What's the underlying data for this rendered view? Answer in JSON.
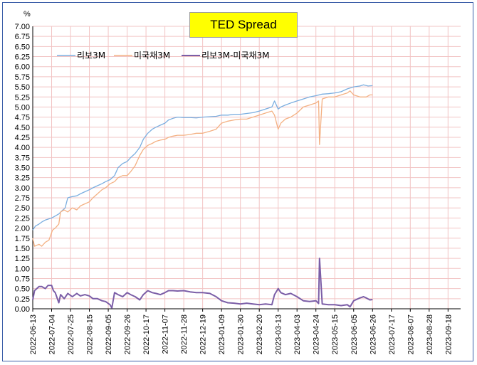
{
  "chart_data": {
    "type": "line",
    "title": "TED Spread",
    "ylabel": "%",
    "xlabel": "",
    "ylim": [
      0,
      7
    ],
    "y_ticks": [
      "0.00",
      "0.25",
      "0.50",
      "0.75",
      "1.00",
      "1.25",
      "1.50",
      "1.75",
      "2.00",
      "2.25",
      "2.50",
      "2.75",
      "3.00",
      "3.25",
      "3.50",
      "3.75",
      "4.00",
      "4.25",
      "4.50",
      "4.75",
      "5.00",
      "5.25",
      "5.50",
      "5.75",
      "6.00",
      "6.25",
      "6.50",
      "6.75",
      "7.00"
    ],
    "x_ticks": [
      "2022-06-13",
      "2022-07-04",
      "2022-07-25",
      "2022-08-15",
      "2022-09-05",
      "2022-09-26",
      "2022-10-17",
      "2022-11-07",
      "2022-11-28",
      "2022-12-19",
      "2023-01-09",
      "2023-01-30",
      "2023-02-20",
      "2023-03-13",
      "2023-04-03",
      "2023-04-24",
      "2023-05-15",
      "2023-06-05",
      "2023-06-26",
      "2023-07-17",
      "2023-08-07",
      "2023-08-28",
      "2023-09-18"
    ],
    "xlim": [
      "2022-06-13",
      "2023-10-02"
    ],
    "grid": true,
    "legend_position": "top-left",
    "series": [
      {
        "name": "리보3M",
        "color": "#7aaee0",
        "points": [
          [
            "2022-06-13",
            1.95
          ],
          [
            "2022-06-16",
            2.05
          ],
          [
            "2022-06-20",
            2.1
          ],
          [
            "2022-06-23",
            2.15
          ],
          [
            "2022-06-27",
            2.2
          ],
          [
            "2022-07-04",
            2.25
          ],
          [
            "2022-07-08",
            2.3
          ],
          [
            "2022-07-12",
            2.35
          ],
          [
            "2022-07-15",
            2.42
          ],
          [
            "2022-07-19",
            2.5
          ],
          [
            "2022-07-22",
            2.75
          ],
          [
            "2022-07-27",
            2.78
          ],
          [
            "2022-08-01",
            2.8
          ],
          [
            "2022-08-05",
            2.85
          ],
          [
            "2022-08-10",
            2.9
          ],
          [
            "2022-08-15",
            2.95
          ],
          [
            "2022-08-19",
            3.0
          ],
          [
            "2022-08-24",
            3.05
          ],
          [
            "2022-08-29",
            3.1
          ],
          [
            "2022-09-02",
            3.15
          ],
          [
            "2022-09-07",
            3.2
          ],
          [
            "2022-09-12",
            3.3
          ],
          [
            "2022-09-16",
            3.5
          ],
          [
            "2022-09-21",
            3.6
          ],
          [
            "2022-09-26",
            3.65
          ],
          [
            "2022-09-30",
            3.75
          ],
          [
            "2022-10-05",
            3.85
          ],
          [
            "2022-10-10",
            4.0
          ],
          [
            "2022-10-14",
            4.2
          ],
          [
            "2022-10-19",
            4.35
          ],
          [
            "2022-10-24",
            4.45
          ],
          [
            "2022-10-28",
            4.5
          ],
          [
            "2022-11-02",
            4.55
          ],
          [
            "2022-11-07",
            4.6
          ],
          [
            "2022-11-11",
            4.68
          ],
          [
            "2022-11-16",
            4.72
          ],
          [
            "2022-11-21",
            4.75
          ],
          [
            "2022-11-28",
            4.74
          ],
          [
            "2022-12-05",
            4.74
          ],
          [
            "2022-12-12",
            4.73
          ],
          [
            "2022-12-19",
            4.75
          ],
          [
            "2022-12-27",
            4.76
          ],
          [
            "2023-01-03",
            4.77
          ],
          [
            "2023-01-09",
            4.8
          ],
          [
            "2023-01-16",
            4.8
          ],
          [
            "2023-01-23",
            4.82
          ],
          [
            "2023-01-30",
            4.82
          ],
          [
            "2023-02-06",
            4.84
          ],
          [
            "2023-02-13",
            4.86
          ],
          [
            "2023-02-20",
            4.9
          ],
          [
            "2023-02-27",
            4.95
          ],
          [
            "2023-03-06",
            5.0
          ],
          [
            "2023-03-09",
            5.15
          ],
          [
            "2023-03-13",
            4.95
          ],
          [
            "2023-03-16",
            5.0
          ],
          [
            "2023-03-21",
            5.05
          ],
          [
            "2023-03-27",
            5.1
          ],
          [
            "2023-04-03",
            5.15
          ],
          [
            "2023-04-10",
            5.2
          ],
          [
            "2023-04-17",
            5.25
          ],
          [
            "2023-04-24",
            5.28
          ],
          [
            "2023-05-01",
            5.32
          ],
          [
            "2023-05-08",
            5.33
          ],
          [
            "2023-05-15",
            5.35
          ],
          [
            "2023-05-22",
            5.38
          ],
          [
            "2023-05-29",
            5.45
          ],
          [
            "2023-06-05",
            5.5
          ],
          [
            "2023-06-12",
            5.52
          ],
          [
            "2023-06-16",
            5.55
          ],
          [
            "2023-06-21",
            5.52
          ],
          [
            "2023-06-26",
            5.53
          ]
        ]
      },
      {
        "name": "미국채3M",
        "color": "#f4b183",
        "points": [
          [
            "2022-06-13",
            1.75
          ],
          [
            "2022-06-15",
            1.55
          ],
          [
            "2022-06-20",
            1.6
          ],
          [
            "2022-06-23",
            1.55
          ],
          [
            "2022-06-27",
            1.65
          ],
          [
            "2022-07-01",
            1.7
          ],
          [
            "2022-07-05",
            1.95
          ],
          [
            "2022-07-08",
            2.0
          ],
          [
            "2022-07-12",
            2.1
          ],
          [
            "2022-07-14",
            2.4
          ],
          [
            "2022-07-18",
            2.45
          ],
          [
            "2022-07-22",
            2.4
          ],
          [
            "2022-07-27",
            2.5
          ],
          [
            "2022-08-01",
            2.45
          ],
          [
            "2022-08-05",
            2.55
          ],
          [
            "2022-08-10",
            2.6
          ],
          [
            "2022-08-15",
            2.65
          ],
          [
            "2022-08-19",
            2.75
          ],
          [
            "2022-08-24",
            2.85
          ],
          [
            "2022-08-29",
            2.95
          ],
          [
            "2022-09-02",
            3.0
          ],
          [
            "2022-09-07",
            3.1
          ],
          [
            "2022-09-12",
            3.15
          ],
          [
            "2022-09-16",
            3.25
          ],
          [
            "2022-09-21",
            3.3
          ],
          [
            "2022-09-26",
            3.3
          ],
          [
            "2022-09-30",
            3.4
          ],
          [
            "2022-10-05",
            3.55
          ],
          [
            "2022-10-10",
            3.8
          ],
          [
            "2022-10-14",
            3.95
          ],
          [
            "2022-10-19",
            4.05
          ],
          [
            "2022-10-24",
            4.1
          ],
          [
            "2022-10-28",
            4.15
          ],
          [
            "2022-11-02",
            4.18
          ],
          [
            "2022-11-07",
            4.2
          ],
          [
            "2022-11-11",
            4.25
          ],
          [
            "2022-11-16",
            4.28
          ],
          [
            "2022-11-21",
            4.3
          ],
          [
            "2022-11-28",
            4.3
          ],
          [
            "2022-12-05",
            4.32
          ],
          [
            "2022-12-12",
            4.35
          ],
          [
            "2022-12-19",
            4.35
          ],
          [
            "2022-12-27",
            4.4
          ],
          [
            "2023-01-03",
            4.45
          ],
          [
            "2023-01-09",
            4.6
          ],
          [
            "2023-01-16",
            4.65
          ],
          [
            "2023-01-23",
            4.68
          ],
          [
            "2023-01-30",
            4.7
          ],
          [
            "2023-02-06",
            4.7
          ],
          [
            "2023-02-13",
            4.75
          ],
          [
            "2023-02-20",
            4.8
          ],
          [
            "2023-02-27",
            4.85
          ],
          [
            "2023-03-06",
            4.9
          ],
          [
            "2023-03-09",
            4.8
          ],
          [
            "2023-03-13",
            4.45
          ],
          [
            "2023-03-16",
            4.6
          ],
          [
            "2023-03-21",
            4.7
          ],
          [
            "2023-03-27",
            4.75
          ],
          [
            "2023-04-03",
            4.85
          ],
          [
            "2023-04-10",
            5.0
          ],
          [
            "2023-04-17",
            5.05
          ],
          [
            "2023-04-24",
            5.1
          ],
          [
            "2023-04-27",
            5.15
          ],
          [
            "2023-04-28",
            4.07
          ],
          [
            "2023-05-01",
            5.2
          ],
          [
            "2023-05-08",
            5.25
          ],
          [
            "2023-05-15",
            5.25
          ],
          [
            "2023-05-22",
            5.3
          ],
          [
            "2023-05-29",
            5.35
          ],
          [
            "2023-06-01",
            5.4
          ],
          [
            "2023-06-05",
            5.3
          ],
          [
            "2023-06-12",
            5.25
          ],
          [
            "2023-06-19",
            5.25
          ],
          [
            "2023-06-23",
            5.3
          ],
          [
            "2023-06-26",
            5.3
          ]
        ]
      },
      {
        "name": "리보3M-미국채3M",
        "color": "#7b5ea7",
        "points": [
          [
            "2022-06-13",
            0.22
          ],
          [
            "2022-06-15",
            0.45
          ],
          [
            "2022-06-20",
            0.55
          ],
          [
            "2022-06-23",
            0.55
          ],
          [
            "2022-06-27",
            0.5
          ],
          [
            "2022-06-30",
            0.58
          ],
          [
            "2022-07-04",
            0.58
          ],
          [
            "2022-07-06",
            0.45
          ],
          [
            "2022-07-08",
            0.4
          ],
          [
            "2022-07-12",
            0.15
          ],
          [
            "2022-07-14",
            0.35
          ],
          [
            "2022-07-18",
            0.25
          ],
          [
            "2022-07-22",
            0.38
          ],
          [
            "2022-07-27",
            0.3
          ],
          [
            "2022-08-01",
            0.38
          ],
          [
            "2022-08-05",
            0.32
          ],
          [
            "2022-08-10",
            0.35
          ],
          [
            "2022-08-15",
            0.32
          ],
          [
            "2022-08-19",
            0.25
          ],
          [
            "2022-08-24",
            0.25
          ],
          [
            "2022-08-29",
            0.2
          ],
          [
            "2022-09-02",
            0.18
          ],
          [
            "2022-09-07",
            0.1
          ],
          [
            "2022-09-09",
            0.02
          ],
          [
            "2022-09-12",
            0.4
          ],
          [
            "2022-09-16",
            0.35
          ],
          [
            "2022-09-21",
            0.3
          ],
          [
            "2022-09-26",
            0.4
          ],
          [
            "2022-09-30",
            0.35
          ],
          [
            "2022-10-05",
            0.3
          ],
          [
            "2022-10-10",
            0.22
          ],
          [
            "2022-10-14",
            0.35
          ],
          [
            "2022-10-19",
            0.45
          ],
          [
            "2022-10-24",
            0.4
          ],
          [
            "2022-10-28",
            0.38
          ],
          [
            "2022-11-02",
            0.35
          ],
          [
            "2022-11-07",
            0.4
          ],
          [
            "2022-11-11",
            0.45
          ],
          [
            "2022-11-16",
            0.45
          ],
          [
            "2022-11-21",
            0.44
          ],
          [
            "2022-11-28",
            0.45
          ],
          [
            "2022-12-05",
            0.42
          ],
          [
            "2022-12-12",
            0.4
          ],
          [
            "2022-12-19",
            0.4
          ],
          [
            "2022-12-27",
            0.38
          ],
          [
            "2023-01-03",
            0.3
          ],
          [
            "2023-01-09",
            0.2
          ],
          [
            "2023-01-16",
            0.15
          ],
          [
            "2023-01-23",
            0.14
          ],
          [
            "2023-01-30",
            0.12
          ],
          [
            "2023-02-06",
            0.14
          ],
          [
            "2023-02-13",
            0.12
          ],
          [
            "2023-02-20",
            0.1
          ],
          [
            "2023-02-27",
            0.12
          ],
          [
            "2023-03-06",
            0.1
          ],
          [
            "2023-03-09",
            0.35
          ],
          [
            "2023-03-13",
            0.5
          ],
          [
            "2023-03-16",
            0.4
          ],
          [
            "2023-03-21",
            0.35
          ],
          [
            "2023-03-27",
            0.38
          ],
          [
            "2023-04-03",
            0.3
          ],
          [
            "2023-04-10",
            0.2
          ],
          [
            "2023-04-17",
            0.18
          ],
          [
            "2023-04-24",
            0.2
          ],
          [
            "2023-04-27",
            0.13
          ],
          [
            "2023-04-28",
            1.25
          ],
          [
            "2023-05-01",
            0.12
          ],
          [
            "2023-05-08",
            0.1
          ],
          [
            "2023-05-15",
            0.1
          ],
          [
            "2023-05-22",
            0.08
          ],
          [
            "2023-05-29",
            0.1
          ],
          [
            "2023-06-01",
            0.05
          ],
          [
            "2023-06-05",
            0.2
          ],
          [
            "2023-06-12",
            0.27
          ],
          [
            "2023-06-16",
            0.3
          ],
          [
            "2023-06-19",
            0.27
          ],
          [
            "2023-06-23",
            0.22
          ],
          [
            "2023-06-26",
            0.23
          ]
        ]
      }
    ]
  }
}
